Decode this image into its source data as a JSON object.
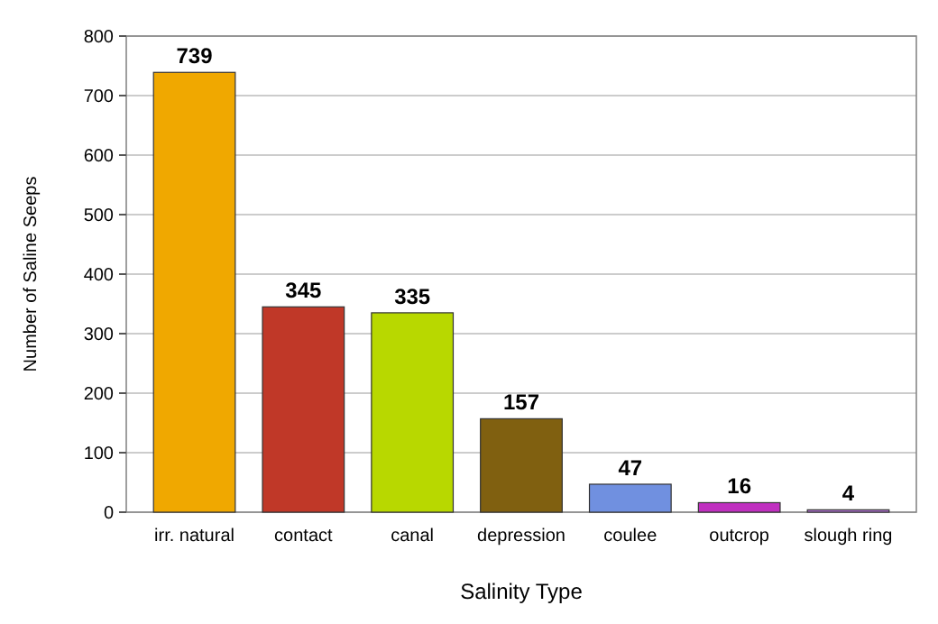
{
  "chart_data": {
    "type": "bar",
    "xlabel": "Salinity Type",
    "ylabel": "Number of Saline Seeps",
    "categories": [
      "irr. natural",
      "contact",
      "canal",
      "depression",
      "coulee",
      "outcrop",
      "slough ring"
    ],
    "values": [
      739,
      345,
      335,
      157,
      47,
      16,
      4
    ],
    "colors": [
      "#f0a800",
      "#c03828",
      "#b8d800",
      "#806010",
      "#7090e0",
      "#c030c0",
      "#b070d0"
    ],
    "ylim": [
      0,
      800
    ],
    "yticks": [
      0,
      100,
      200,
      300,
      400,
      500,
      600,
      700,
      800
    ],
    "grid": "y",
    "data_labels": true
  }
}
